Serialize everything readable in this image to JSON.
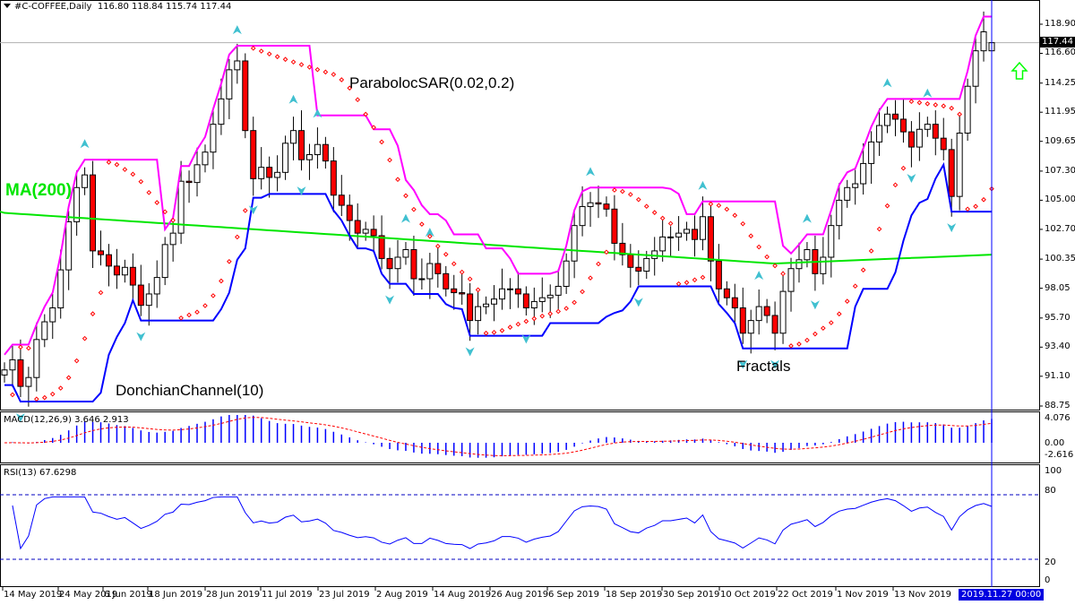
{
  "header": {
    "symbol_tf": "#C-COFFEE,Daily",
    "ohlc": "116.80 118.84 115.74 117.44"
  },
  "annotations": {
    "ma": "MA(200)",
    "sar": "ParabolocSAR(0.02,0.2)",
    "donchian": "DonchianChannel(10)",
    "fractals": "Fractals"
  },
  "macd": {
    "label": "MACD(12,26,9) 3.646 2.913",
    "ticks": [
      "4.076",
      "0.00",
      "-2.616"
    ]
  },
  "rsi": {
    "label": "RSI(13) 67.6298",
    "ticks": [
      "100",
      "80",
      "20",
      "0"
    ]
  },
  "price_axis": {
    "ticks": [
      "118.90",
      "116.60",
      "114.25",
      "111.95",
      "109.65",
      "107.30",
      "105.00",
      "102.70",
      "100.35",
      "98.05",
      "95.70",
      "93.40",
      "91.10",
      "88.75"
    ],
    "current": "117.44"
  },
  "time_axis": {
    "labels": [
      "14 May 2019",
      "24 May 2019",
      "6 Jun 2019",
      "18 Jun 2019",
      "28 Jun 2019",
      "11 Jul 2019",
      "23 Jul 2019",
      "2 Aug 2019",
      "14 Aug 2019",
      "26 Aug 2019",
      "6 Sep 2019",
      "18 Sep 2019",
      "30 Sep 2019",
      "10 Oct 2019",
      "22 Oct 2019",
      "1 Nov 2019",
      "13 Nov 2019"
    ],
    "cursor": "2019.11.27 00:00"
  },
  "colors": {
    "bull": "#ffffff",
    "bear": "#ff0000",
    "ma": "#00e600",
    "donchian_upper": "#ff00ff",
    "donchian_lower": "#0000ff",
    "sar": "#ff0000",
    "fractal": "#40c0d0",
    "macd_hist": "#0000ff",
    "macd_signal": "#ff0000",
    "rsi": "#0000ff",
    "signal_arrow": "#00ff00"
  },
  "chart_data": {
    "type": "candlestick",
    "title": "#C-COFFEE,Daily",
    "ylim": [
      88.75,
      118.9
    ],
    "indicators": [
      "MA(200)",
      "ParabolocSAR(0.02,0.2)",
      "DonchianChannel(10)",
      "Fractals",
      "MACD(12,26,9)",
      "RSI(13)"
    ],
    "last_ohlc": {
      "open": 116.8,
      "high": 118.84,
      "low": 115.74,
      "close": 117.44
    },
    "closes": [
      91.6,
      92.4,
      90.3,
      91.0,
      94.0,
      95.4,
      96.5,
      99.5,
      103.3,
      106.0,
      107.0,
      101.0,
      100.7,
      99.8,
      99.1,
      99.7,
      98.3,
      96.7,
      97.6,
      98.9,
      101.5,
      102.4,
      106.5,
      106.4,
      107.8,
      108.8,
      111.0,
      113.0,
      115.3,
      116.0,
      110.5,
      106.7,
      107.6,
      106.8,
      107.2,
      109.5,
      110.5,
      108.2,
      108.6,
      109.4,
      108.1,
      105.4,
      104.6,
      103.4,
      102.4,
      102.7,
      102.2,
      100.4,
      99.6,
      100.5,
      101.1,
      98.8,
      98.8,
      100.0,
      99.2,
      98.0,
      97.7,
      97.6,
      95.5,
      96.6,
      96.8,
      97.2,
      98.0,
      98.0,
      97.6,
      96.5,
      97.0,
      97.3,
      97.5,
      98.2,
      100.2,
      103.0,
      104.5,
      104.8,
      104.7,
      104.3,
      101.6,
      100.7,
      99.7,
      99.4,
      100.4,
      101.0,
      102.1,
      102.1,
      102.4,
      102.7,
      101.9,
      103.7,
      100.2,
      98.0,
      97.3,
      96.5,
      94.5,
      95.5,
      96.6,
      95.9,
      94.5,
      97.8,
      99.6,
      100.3,
      101.1,
      99.2,
      100.5,
      103.0,
      105.0,
      106.0,
      106.3,
      107.9,
      109.6,
      110.9,
      111.8,
      111.4,
      110.4,
      109.2,
      110.6,
      111.0,
      109.9,
      109.0,
      105.3,
      110.3,
      114.0,
      116.8,
      118.3,
      117.44
    ],
    "ma200": "≈104.0 (May) declining to ≈100.0 (Oct), rising to ≈100.7 (Nov)",
    "rsi_range": [
      20,
      80
    ],
    "rsi_last": 67.6298,
    "macd_last": {
      "macd": 3.646,
      "signal": 2.913
    },
    "macd_range": [
      -2.616,
      4.076
    ]
  }
}
